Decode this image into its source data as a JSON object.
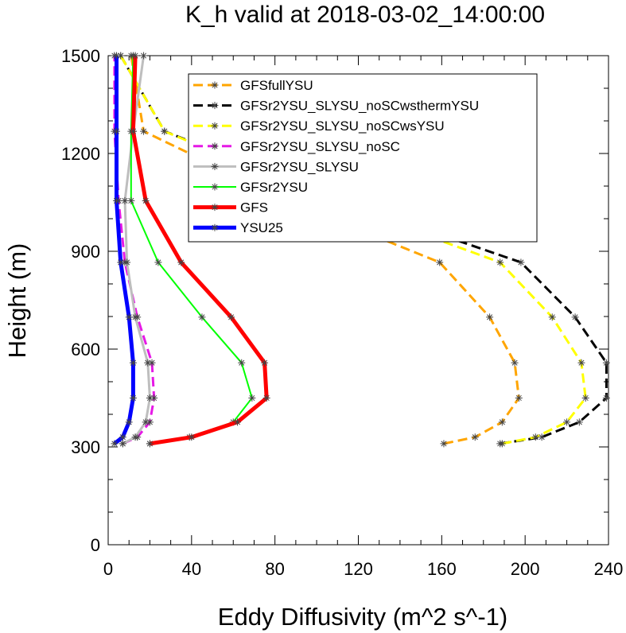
{
  "chart_data": {
    "type": "line",
    "title": "K_h valid at 2018-03-02_14:00:00",
    "xlabel": "Eddy Diffusivity (m^2 s^-1)",
    "ylabel": "Height (m)",
    "xlim": [
      0,
      240
    ],
    "ylim": [
      0,
      1500
    ],
    "xticks": [
      "0",
      "40",
      "80",
      "120",
      "160",
      "200",
      "240"
    ],
    "yticks": [
      "0",
      "300",
      "600",
      "900",
      "1200",
      "1500"
    ],
    "legend_position": "top-right",
    "series": [
      {
        "name": "GFSfullYSU",
        "color": "#FFA500",
        "dash": true,
        "width": 3,
        "points": [
          [
            161,
            310
          ],
          [
            176,
            330
          ],
          [
            189,
            376
          ],
          [
            197,
            450
          ],
          [
            195,
            558
          ],
          [
            183,
            698
          ],
          [
            159,
            866
          ],
          [
            86,
            1055
          ],
          [
            17,
            1268
          ],
          [
            11,
            1500
          ]
        ]
      },
      {
        "name": "GFSr2YSU_SLYSU_noSCwsthermYSU",
        "color": "#000000",
        "dash": true,
        "width": 3,
        "points": [
          [
            188,
            310
          ],
          [
            208,
            330
          ],
          [
            226,
            376
          ],
          [
            239,
            450
          ],
          [
            239,
            558
          ],
          [
            224,
            698
          ],
          [
            198,
            866
          ],
          [
            112,
            1055
          ],
          [
            27,
            1268
          ],
          [
            6,
            1500
          ]
        ]
      },
      {
        "name": "GFSr2YSU_SLYSU_noSCwsYSU",
        "color": "#FFFF00",
        "dash": true,
        "width": 3,
        "points": [
          [
            189,
            310
          ],
          [
            205,
            330
          ],
          [
            220,
            376
          ],
          [
            229,
            450
          ],
          [
            227,
            558
          ],
          [
            213,
            698
          ],
          [
            188,
            866
          ],
          [
            107,
            1055
          ],
          [
            27,
            1268
          ],
          [
            6,
            1500
          ]
        ]
      },
      {
        "name": "GFSr2YSU_SLYSU_noSC",
        "color": "#E619E6",
        "dash": true,
        "width": 3,
        "points": [
          [
            7,
            310
          ],
          [
            14,
            330
          ],
          [
            20,
            376
          ],
          [
            22,
            450
          ],
          [
            21,
            558
          ],
          [
            14,
            698
          ],
          [
            8,
            866
          ],
          [
            5,
            1055
          ],
          [
            3,
            1268
          ],
          [
            3,
            1500
          ]
        ]
      },
      {
        "name": "GFSr2YSU_SLYSU",
        "color": "#BEBEBE",
        "dash": false,
        "width": 3,
        "points": [
          [
            7,
            310
          ],
          [
            13,
            330
          ],
          [
            18,
            376
          ],
          [
            20,
            450
          ],
          [
            19,
            558
          ],
          [
            13,
            698
          ],
          [
            9,
            866
          ],
          [
            8,
            1055
          ],
          [
            12,
            1268
          ],
          [
            17,
            1500
          ]
        ]
      },
      {
        "name": "GFSr2YSU",
        "color": "#00FF00",
        "dash": false,
        "width": 2,
        "points": [
          [
            20,
            310
          ],
          [
            39,
            330
          ],
          [
            60,
            376
          ],
          [
            69,
            450
          ],
          [
            64,
            558
          ],
          [
            45,
            698
          ],
          [
            24,
            866
          ],
          [
            11,
            1055
          ],
          [
            11,
            1268
          ],
          [
            12,
            1500
          ]
        ]
      },
      {
        "name": "GFS",
        "color": "#FF0000",
        "dash": false,
        "width": 5,
        "points": [
          [
            20,
            310
          ],
          [
            40,
            330
          ],
          [
            62,
            376
          ],
          [
            76,
            450
          ],
          [
            75,
            558
          ],
          [
            59,
            698
          ],
          [
            35,
            866
          ],
          [
            18,
            1055
          ],
          [
            12,
            1268
          ],
          [
            13,
            1500
          ]
        ]
      },
      {
        "name": "YSU25",
        "color": "#0000FF",
        "dash": false,
        "width": 5,
        "points": [
          [
            3,
            310
          ],
          [
            7,
            330
          ],
          [
            10,
            376
          ],
          [
            12,
            450
          ],
          [
            12,
            558
          ],
          [
            10,
            698
          ],
          [
            6,
            866
          ],
          [
            4,
            1055
          ],
          [
            4,
            1268
          ],
          [
            4,
            1500
          ]
        ]
      }
    ]
  }
}
